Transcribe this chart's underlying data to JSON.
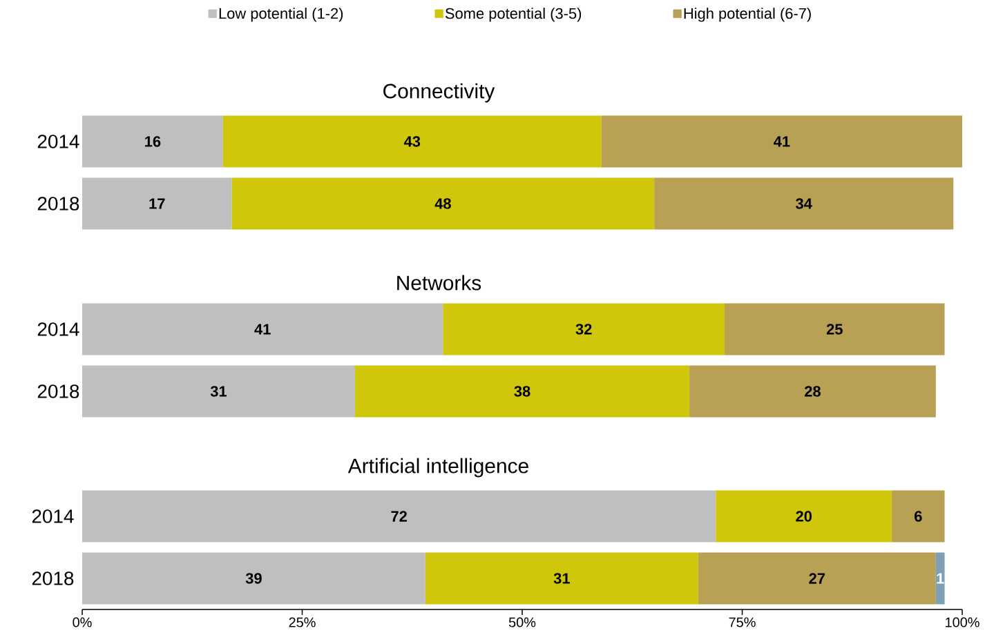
{
  "chart_data": [
    {
      "type": "bar",
      "orientation": "horizontal",
      "stacked": true,
      "title": "Connectivity",
      "categories": [
        "2014",
        "2018"
      ],
      "xlim": [
        0,
        100
      ],
      "tick_labels": "y",
      "legend": "top",
      "data_labels": true,
      "series": [
        {
          "name": "Low potential (1-2)",
          "color": "#bfbfbf",
          "values": [
            16,
            17
          ]
        },
        {
          "name": "Some potential (3-5)",
          "color": "#d0c60c",
          "values": [
            43,
            48
          ]
        },
        {
          "name": "High potential (6-7)",
          "color": "#b8a054",
          "values": [
            41,
            34
          ]
        }
      ]
    },
    {
      "type": "bar",
      "orientation": "horizontal",
      "stacked": true,
      "title": "Networks",
      "categories": [
        "2014",
        "2018"
      ],
      "xlim": [
        0,
        100
      ],
      "tick_labels": "y",
      "data_labels": true,
      "series": [
        {
          "color": "#bfbfbf",
          "values": [
            41,
            31
          ]
        },
        {
          "color": "#d0c60c",
          "values": [
            32,
            38
          ]
        },
        {
          "color": "#b8a054",
          "values": [
            25,
            28
          ]
        }
      ]
    },
    {
      "type": "bar",
      "orientation": "horizontal",
      "stacked": true,
      "title": "Artificial intelligence",
      "categories": [
        "2014",
        "2018"
      ],
      "xlim": [
        0,
        100
      ],
      "data_labels": true,
      "xticks": [
        {
          "value": 0,
          "label": "0%"
        },
        {
          "value": 25,
          "label": "25%"
        },
        {
          "value": 50,
          "label": "50%"
        },
        {
          "value": 75,
          "label": "75%"
        },
        {
          "value": 100,
          "label": "100%"
        }
      ],
      "series": [
        {
          "color": "#bfbfbf",
          "values": [
            72,
            39
          ]
        },
        {
          "color": "#d0c60c",
          "values": [
            20,
            31
          ]
        },
        {
          "color": "#b8a054",
          "values": [
            6,
            27
          ]
        },
        {
          "color": "#7f9fb5",
          "values": [
            null,
            1
          ]
        }
      ]
    }
  ]
}
